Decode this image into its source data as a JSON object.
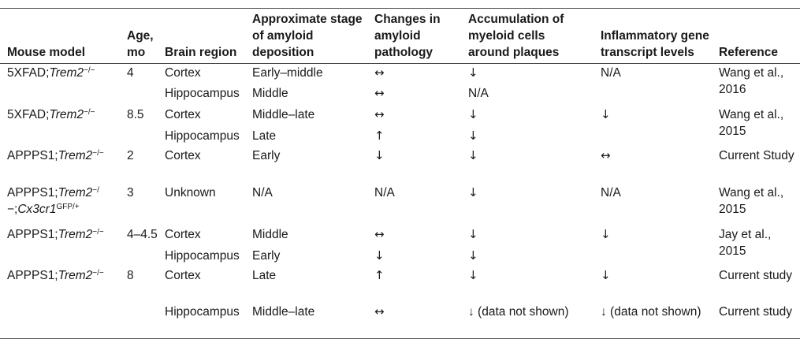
{
  "headers": {
    "model": "Mouse model",
    "age": "Age, mo",
    "region": "Brain region",
    "stage": "Approximate stage of amyloid deposition",
    "pathology": "Changes in amyloid pathology",
    "myeloid": "Accumulation of myeloid cells around plaques",
    "inflammatory": "Inflammatory gene transcript levels",
    "reference": "Reference"
  },
  "models": {
    "m1": "5XFAD;",
    "m1_gene": "Trem2",
    "m1_sup": "−/−",
    "m2": "5XFAD;",
    "m2_gene": "Trem2",
    "m2_sup": "−/−",
    "m3": "APPPS1;",
    "m3_gene": "Trem2",
    "m3_sup": "−/−",
    "m4": "APPPS1;",
    "m4_gene": "Trem2",
    "m4_sup": "−/",
    "m4_line2a": "−;",
    "m4_gene2": "Cx3cr1",
    "m4_sup2": "GFP/+",
    "m5": "APPPS1;",
    "m5_gene": "Trem2",
    "m5_sup": "−/−",
    "m6": "APPPS1;",
    "m6_gene": "Trem2",
    "m6_sup": "−/−"
  },
  "rows": {
    "r1": {
      "age": "4",
      "region": "Cortex",
      "stage": "Early–middle",
      "path": "↔",
      "myel": "↓",
      "infl": "N/A",
      "ref": "Wang et al., 2016"
    },
    "r2": {
      "region": "Hippocampus",
      "stage": "Middle",
      "path": "↔",
      "myel": "N/A"
    },
    "r3": {
      "age": "8.5",
      "region": "Cortex",
      "stage": "Middle–late",
      "path": "↔",
      "myel": "↓",
      "infl": "↓",
      "ref": "Wang et al., 2015"
    },
    "r4": {
      "region": "Hippocampus",
      "stage": "Late",
      "path": "↑",
      "myel": "↓"
    },
    "r5": {
      "age": "2",
      "region": "Cortex",
      "stage": "Early",
      "path": "↓",
      "myel": "↓",
      "infl": "↔",
      "ref": "Current Study"
    },
    "r6": {
      "age": "3",
      "region": "Unknown",
      "stage": "N/A",
      "path": "N/A",
      "myel": "↓",
      "infl": "N/A",
      "ref": "Wang et al., 2015"
    },
    "r7": {
      "age": "4–4.5",
      "region": "Cortex",
      "stage": "Middle",
      "path": "↔",
      "myel": "↓",
      "infl": "↓",
      "ref": "Jay et al., 2015"
    },
    "r8": {
      "region": "Hippocampus",
      "stage": "Early",
      "path": "↓",
      "myel": "↓"
    },
    "r9": {
      "age": "8",
      "region": "Cortex",
      "stage": "Late",
      "path": "↑",
      "myel": "↓",
      "infl": "↓",
      "ref": "Current study"
    },
    "r10": {
      "region": "Hippocampus",
      "stage": "Middle–late",
      "path": "↔",
      "myel": "↓ (data not shown)",
      "infl": "↓ (data not shown)",
      "ref": "Current study"
    }
  }
}
